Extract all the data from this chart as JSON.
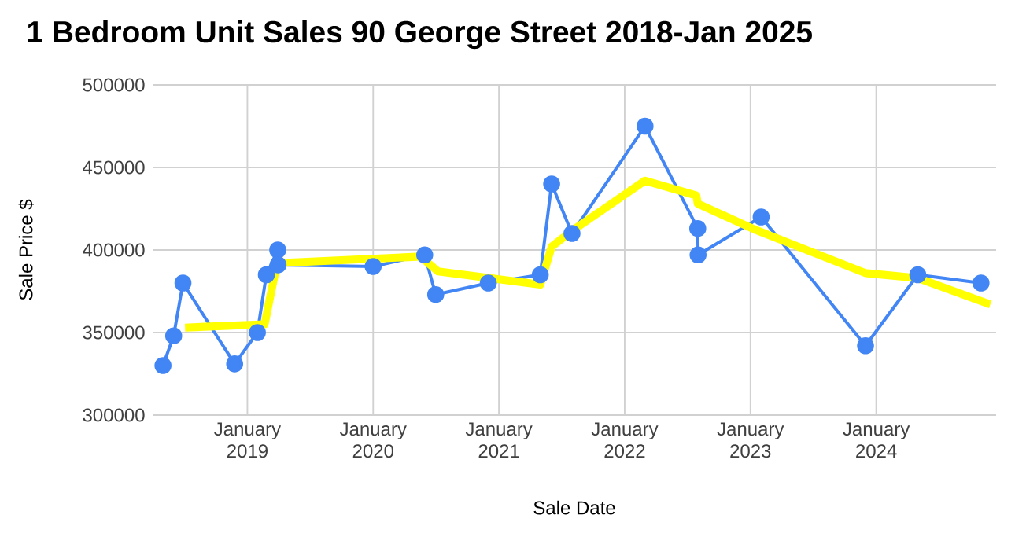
{
  "chart_data": {
    "type": "line",
    "title": "1 Bedroom Unit Sales 90 George Street 2018-Jan 2025",
    "xlabel": "Sale Date",
    "ylabel": "Sale Price $",
    "xlim": [
      "2018-04-01",
      "2024-12-15"
    ],
    "ylim": [
      300000,
      500000
    ],
    "xticks": [
      {
        "value": "2019-01-01",
        "label": "January 2019"
      },
      {
        "value": "2020-01-01",
        "label": "January 2020"
      },
      {
        "value": "2021-01-01",
        "label": "January 2021"
      },
      {
        "value": "2022-01-01",
        "label": "January 2022"
      },
      {
        "value": "2023-01-01",
        "label": "January 2023"
      },
      {
        "value": "2024-01-01",
        "label": "January 2024"
      }
    ],
    "yticks": [
      300000,
      350000,
      400000,
      450000,
      500000
    ],
    "grid": true,
    "series": [
      {
        "color": "#4285f4",
        "marker": "circle",
        "line_style": "solid",
        "x": [
          "2018-05-01",
          "2018-06-01",
          "2018-06-28",
          "2018-11-25",
          "2019-01-30",
          "2019-02-25",
          "2019-03-30",
          "2019-03-31",
          "2020-01-01",
          "2020-05-30",
          "2020-07-01",
          "2020-12-01",
          "2021-05-01",
          "2021-06-03",
          "2021-08-01",
          "2022-03-01",
          "2022-08-01",
          "2022-08-02",
          "2023-02-01",
          "2023-12-01",
          "2024-05-01",
          "2024-11-01"
        ],
        "values": [
          330000,
          348000,
          380000,
          331000,
          350000,
          385000,
          400000,
          391000,
          390000,
          397000,
          373000,
          380000,
          385000,
          440000,
          410000,
          475000,
          413000,
          397000,
          420000,
          342000,
          385000,
          380000
        ]
      },
      {
        "color": "#ffff00",
        "marker": "none",
        "line_style": "solid",
        "x": [
          "2018-07-04",
          "2019-02-20",
          "2019-03-28",
          "2020-05-18",
          "2020-07-08",
          "2021-05-01",
          "2021-06-03",
          "2021-08-04",
          "2022-03-01",
          "2022-07-28",
          "2022-08-01",
          "2023-01-18",
          "2023-12-01",
          "2024-05-01",
          "2024-11-28"
        ],
        "values": [
          353000,
          355000,
          392000,
          396000,
          387000,
          379000,
          402000,
          412000,
          442000,
          433000,
          428000,
          412000,
          386000,
          383000,
          367000
        ]
      }
    ]
  }
}
